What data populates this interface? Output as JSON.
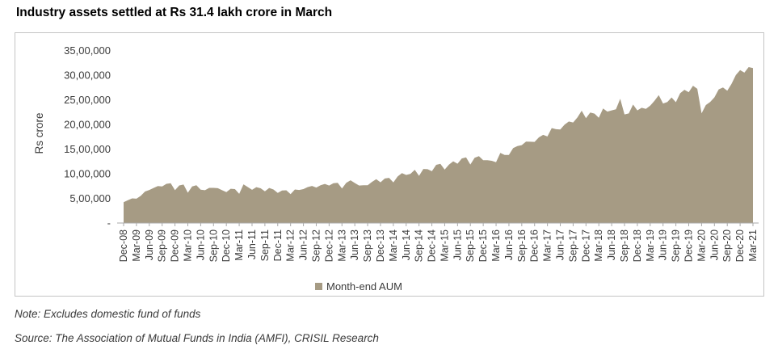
{
  "title": "Industry assets settled at Rs 31.4 lakh crore in March",
  "notes": {
    "note": "Note: Excludes domestic fund of funds",
    "source": "Source: The Association of Mutual Funds in India (AMFI), CRISIL Research"
  },
  "chart_data": {
    "type": "area",
    "title": "Industry assets settled at Rs 31.4 lakh crore in March",
    "xlabel": "",
    "ylabel": "Rs crore",
    "ylim": [
      0,
      3500000
    ],
    "grid": false,
    "legend": [
      "Month-end AUM"
    ],
    "legend_position": "bottom",
    "y_tick_labels": [
      "35,00,000",
      "30,00,000",
      "25,00,000",
      "20,00,000",
      "15,00,000",
      "10,00,000",
      "5,00,000",
      "-"
    ],
    "y_tick_values": [
      3500000,
      3000000,
      2500000,
      2000000,
      1500000,
      1000000,
      500000,
      0
    ],
    "x_tick_labels": [
      "Dec-08",
      "Mar-09",
      "Jun-09",
      "Sep-09",
      "Dec-09",
      "Mar-10",
      "Jun-10",
      "Sep-10",
      "Dec-10",
      "Mar-11",
      "Jun-11",
      "Sep-11",
      "Dec-11",
      "Mar-12",
      "Jun-12",
      "Sep-12",
      "Dec-12",
      "Mar-13",
      "Jun-13",
      "Sep-13",
      "Dec-13",
      "Mar-14",
      "Jun-14",
      "Sep-14",
      "Dec-14",
      "Mar-15",
      "Jun-15",
      "Sep-15",
      "Dec-15",
      "Mar-16",
      "Jun-16",
      "Sep-16",
      "Dec-16",
      "Mar-17",
      "Jun-17",
      "Sep-17",
      "Dec-17",
      "Mar-18",
      "Jun-18",
      "Sep-18",
      "Dec-18",
      "Mar-19",
      "Jun-19",
      "Sep-19",
      "Dec-19",
      "Mar-20",
      "Jun-20",
      "Sep-20",
      "Dec-20",
      "Mar-21"
    ],
    "x_range": {
      "start": "Dec-08",
      "end": "Mar-21",
      "frequency": "monthly"
    },
    "series": [
      {
        "name": "Month-end AUM",
        "color": "#a69b84",
        "unit": "Rs crore",
        "values": [
          421000,
          462000,
          500000,
          493000,
          551000,
          639000,
          670000,
          712000,
          750000,
          743000,
          795000,
          807000,
          665000,
          762000,
          781000,
          614000,
          743000,
          766000,
          675000,
          665000,
          713000,
          713000,
          706000,
          665000,
          626000,
          695000,
          688000,
          592000,
          785000,
          730000,
          673000,
          728000,
          705000,
          642000,
          712000,
          681000,
          611000,
          660000,
          664000,
          587000,
          680000,
          670000,
          689000,
          730000,
          752000,
          720000,
          768000,
          793000,
          760000,
          808000,
          814000,
          701000,
          817000,
          868000,
          811000,
          761000,
          766000,
          766000,
          834000,
          890000,
          826000,
          903000,
          916000,
          825000,
          945000,
          1011000,
          975000,
          998000,
          1080000,
          958000,
          1096000,
          1091000,
          1051000,
          1181000,
          1202000,
          1083000,
          1186000,
          1253000,
          1203000,
          1310000,
          1333000,
          1187000,
          1324000,
          1356000,
          1275000,
          1274000,
          1262000,
          1233000,
          1422000,
          1381000,
          1381000,
          1522000,
          1563000,
          1580000,
          1651000,
          1650000,
          1646000,
          1737000,
          1789000,
          1755000,
          1926000,
          1904000,
          1896000,
          1997000,
          2059000,
          2040000,
          2141000,
          2279000,
          2127000,
          2241000,
          2220000,
          2136000,
          2325000,
          2260000,
          2286000,
          2306000,
          2520000,
          2204000,
          2223000,
          2403000,
          2286000,
          2337000,
          2316000,
          2380000,
          2479000,
          2594000,
          2425000,
          2454000,
          2548000,
          2451000,
          2633000,
          2704000,
          2654000,
          2786000,
          2723000,
          2226000,
          2393000,
          2455000,
          2549000,
          2712000,
          2749000,
          2686000,
          2823000,
          3001000,
          3102000,
          3050000,
          3164000,
          3143000
        ]
      }
    ]
  }
}
